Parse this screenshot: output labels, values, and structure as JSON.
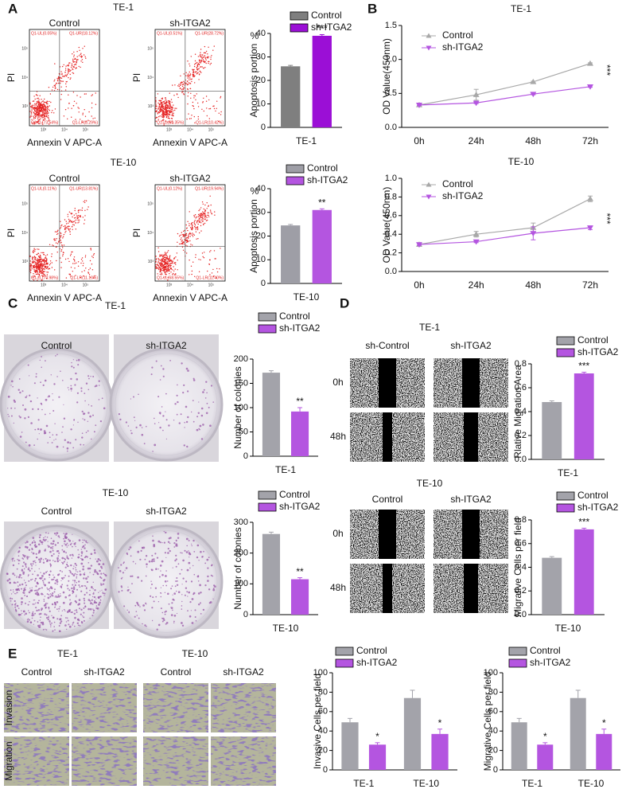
{
  "figure": {
    "letters": [
      "A",
      "B",
      "C",
      "D",
      "E"
    ],
    "flow": {
      "x_label": "Annexin V APC-A",
      "y_label": "PI",
      "ticks": [
        "10³",
        "10⁴",
        "10⁵"
      ],
      "rows": [
        {
          "heading": "TE-1",
          "plots": [
            {
              "title": "Control",
              "gates": [
                "Q1-UL(0.05%)",
                "Q1-UR(18.12%)",
                "Q1-LL(73.54%)",
                "Q1-LR(8.29%)"
              ]
            },
            {
              "title": "sh-ITGA2",
              "gates": [
                "Q1-UL(0.51%)",
                "Q1-UR(28.72%)",
                "Q1-LL(60.35%)",
                "Q1-LR(10.42%)"
              ]
            }
          ]
        },
        {
          "heading": "TE-10",
          "plots": [
            {
              "title": "Control",
              "gates": [
                "Q1-UL(0.11%)",
                "Q1-UR(13.81%)",
                "Q1-LL(74.98%)",
                "Q1-LR(11.10%)"
              ]
            },
            {
              "title": "sh-ITGA2",
              "gates": [
                "Q1-UL(0.12%)",
                "Q1-UR(19.94%)",
                "Q1-LL(68.55%)",
                "Q1-LR(11.40%)"
              ]
            }
          ]
        }
      ]
    },
    "colony": {
      "rows": [
        {
          "heading": "TE-1",
          "labels": [
            "Control",
            "sh-ITGA2"
          ]
        },
        {
          "heading": "TE-10",
          "labels": [
            "Control",
            "sh-ITGA2"
          ]
        }
      ]
    },
    "wound": {
      "rows": [
        {
          "heading": "TE-1",
          "labels": [
            "sh-Control",
            "sh-ITGA2"
          ],
          "times": [
            "0h",
            "48h"
          ]
        },
        {
          "heading": "TE-10",
          "labels": [
            "Control",
            "sh-ITGA2"
          ],
          "times": [
            "0h",
            "48h"
          ]
        }
      ]
    },
    "transwell": {
      "lines": [
        "TE-1",
        "TE-10"
      ],
      "labels": [
        "Control",
        "sh-ITGA2",
        "Control",
        "sh-ITGA2"
      ],
      "assays": [
        "Invasion",
        "Migration"
      ]
    }
  },
  "chart_data": [
    {
      "type": "bar",
      "categories": [
        "TE-1"
      ],
      "ylabel": "Apoptosis portion",
      "y_unit": "%",
      "ylim": [
        0,
        40
      ],
      "yticks": [
        0,
        10,
        20,
        30,
        40
      ],
      "series": [
        {
          "name": "Control",
          "color": "#7f7f7f",
          "values": [
            26
          ],
          "errors": [
            0.4
          ]
        },
        {
          "name": "sh-ITGA2",
          "color": "#9b0fd6",
          "values": [
            39
          ],
          "errors": [
            0.5
          ]
        }
      ],
      "significance": [
        "***"
      ]
    },
    {
      "type": "bar",
      "categories": [
        "TE-10"
      ],
      "ylabel": "Apoptosis portion",
      "y_unit": "%",
      "ylim": [
        0,
        40
      ],
      "yticks": [
        0,
        10,
        20,
        30,
        40
      ],
      "series": [
        {
          "name": "Control",
          "color": "#9e9ea6",
          "values": [
            24.5
          ],
          "errors": [
            0.4
          ]
        },
        {
          "name": "sh-ITGA2",
          "color": "#b455e0",
          "values": [
            31
          ],
          "errors": [
            0.5
          ]
        }
      ],
      "significance": [
        "**"
      ]
    },
    {
      "type": "line",
      "title": "TE-1",
      "categories": [
        "0h",
        "24h",
        "48h",
        "72h"
      ],
      "ylabel": "OD Value(450nm)",
      "ylim": [
        0,
        1.5
      ],
      "yticks": [
        {
          "value": 0,
          "label": "0.0"
        },
        0.5,
        {
          "value": 1,
          "label": "1.0"
        },
        1.5
      ],
      "series": [
        {
          "name": "Control",
          "color": "#a8a8a8",
          "values": [
            0.33,
            0.48,
            0.67,
            0.94
          ],
          "errors": [
            0.02,
            0.08,
            0.01,
            0.01
          ]
        },
        {
          "name": "sh-ITGA2",
          "color": "#b455e0",
          "values": [
            0.33,
            0.36,
            0.49,
            0.6
          ],
          "errors": [
            0.01,
            0.01,
            0.01,
            0.01
          ]
        }
      ],
      "significance": "***"
    },
    {
      "type": "line",
      "title": "TE-10",
      "categories": [
        "0h",
        "24h",
        "48h",
        "72h"
      ],
      "ylabel": "OD Value(450nm)",
      "ylim": [
        0,
        1
      ],
      "yticks": [
        {
          "value": 0,
          "label": "0.0"
        },
        0.2,
        0.4,
        0.6,
        0.8,
        {
          "value": 1,
          "label": "1.0"
        }
      ],
      "series": [
        {
          "name": "Control",
          "color": "#a8a8a8",
          "values": [
            0.29,
            0.4,
            0.47,
            0.78
          ],
          "errors": [
            0.02,
            0.03,
            0.05,
            0.03
          ]
        },
        {
          "name": "sh-ITGA2",
          "color": "#b455e0",
          "values": [
            0.29,
            0.32,
            0.41,
            0.47
          ],
          "errors": [
            0.01,
            0.01,
            0.07,
            0.02
          ]
        }
      ],
      "significance": "***"
    },
    {
      "type": "bar",
      "categories": [
        "TE-1"
      ],
      "ylabel": "Number of colonies",
      "ylim": [
        0,
        200
      ],
      "yticks": [
        0,
        50,
        100,
        150,
        200
      ],
      "series": [
        {
          "name": "Control",
          "color": "#a3a3aa",
          "values": [
            172
          ],
          "errors": [
            4
          ]
        },
        {
          "name": "sh-ITGA2",
          "color": "#b455e0",
          "values": [
            92
          ],
          "errors": [
            8
          ]
        }
      ],
      "significance": [
        "**"
      ]
    },
    {
      "type": "bar",
      "categories": [
        "TE-10"
      ],
      "ylabel": "Number of colonies",
      "ylim": [
        0,
        300
      ],
      "yticks": [
        0,
        100,
        200,
        300
      ],
      "series": [
        {
          "name": "Control",
          "color": "#a3a3aa",
          "values": [
            262
          ],
          "errors": [
            6
          ]
        },
        {
          "name": "sh-ITGA2",
          "color": "#b455e0",
          "values": [
            115
          ],
          "errors": [
            5
          ]
        }
      ],
      "significance": [
        "**"
      ]
    },
    {
      "type": "bar",
      "categories": [
        "TE-1"
      ],
      "ylabel": "Rlative Migration Area",
      "ylim": [
        0,
        0.8
      ],
      "yticks": [
        {
          "value": 0,
          "label": "0.0"
        },
        0.2,
        0.4,
        0.6,
        0.8
      ],
      "series": [
        {
          "name": "Control",
          "color": "#a3a3aa",
          "values": [
            0.48
          ],
          "errors": [
            0.01
          ]
        },
        {
          "name": "sh-ITGA2",
          "color": "#b455e0",
          "values": [
            0.72
          ],
          "errors": [
            0.01
          ]
        }
      ],
      "significance": [
        "***"
      ]
    },
    {
      "type": "bar",
      "categories": [
        "TE-10"
      ],
      "ylabel": "Migrative Cells per field",
      "ylim": [
        0,
        0.8
      ],
      "yticks": [
        {
          "value": 0,
          "label": "0.0"
        },
        0.2,
        0.4,
        0.6,
        0.8
      ],
      "series": [
        {
          "name": "Control",
          "color": "#a3a3aa",
          "values": [
            0.48
          ],
          "errors": [
            0.01
          ]
        },
        {
          "name": "sh-ITGA2",
          "color": "#b455e0",
          "values": [
            0.72
          ],
          "errors": [
            0.01
          ]
        }
      ],
      "significance": [
        "***"
      ]
    },
    {
      "type": "bar",
      "categories": [
        "TE-1",
        "TE-10"
      ],
      "ylabel": "Invasive Cells per field",
      "ylim": [
        0,
        100
      ],
      "yticks": [
        0,
        20,
        40,
        60,
        80,
        100
      ],
      "series": [
        {
          "name": "Control",
          "color": "#a3a3aa",
          "values": [
            49,
            74
          ],
          "errors": [
            4,
            8
          ]
        },
        {
          "name": "sh-ITGA2",
          "color": "#b455e0",
          "values": [
            26,
            37
          ],
          "errors": [
            2,
            5
          ]
        }
      ],
      "significance": [
        "*",
        "*"
      ]
    },
    {
      "type": "bar",
      "categories": [
        "TE-1",
        "TE-10"
      ],
      "ylabel": "Migrative Cells per field",
      "ylim": [
        0,
        100
      ],
      "yticks": [
        0,
        20,
        40,
        60,
        80,
        100
      ],
      "series": [
        {
          "name": "Control",
          "color": "#a3a3aa",
          "values": [
            49,
            74
          ],
          "errors": [
            4,
            8
          ]
        },
        {
          "name": "sh-ITGA2",
          "color": "#b455e0",
          "values": [
            26,
            37
          ],
          "errors": [
            2,
            5
          ]
        }
      ],
      "significance": [
        "*",
        "*"
      ]
    }
  ]
}
